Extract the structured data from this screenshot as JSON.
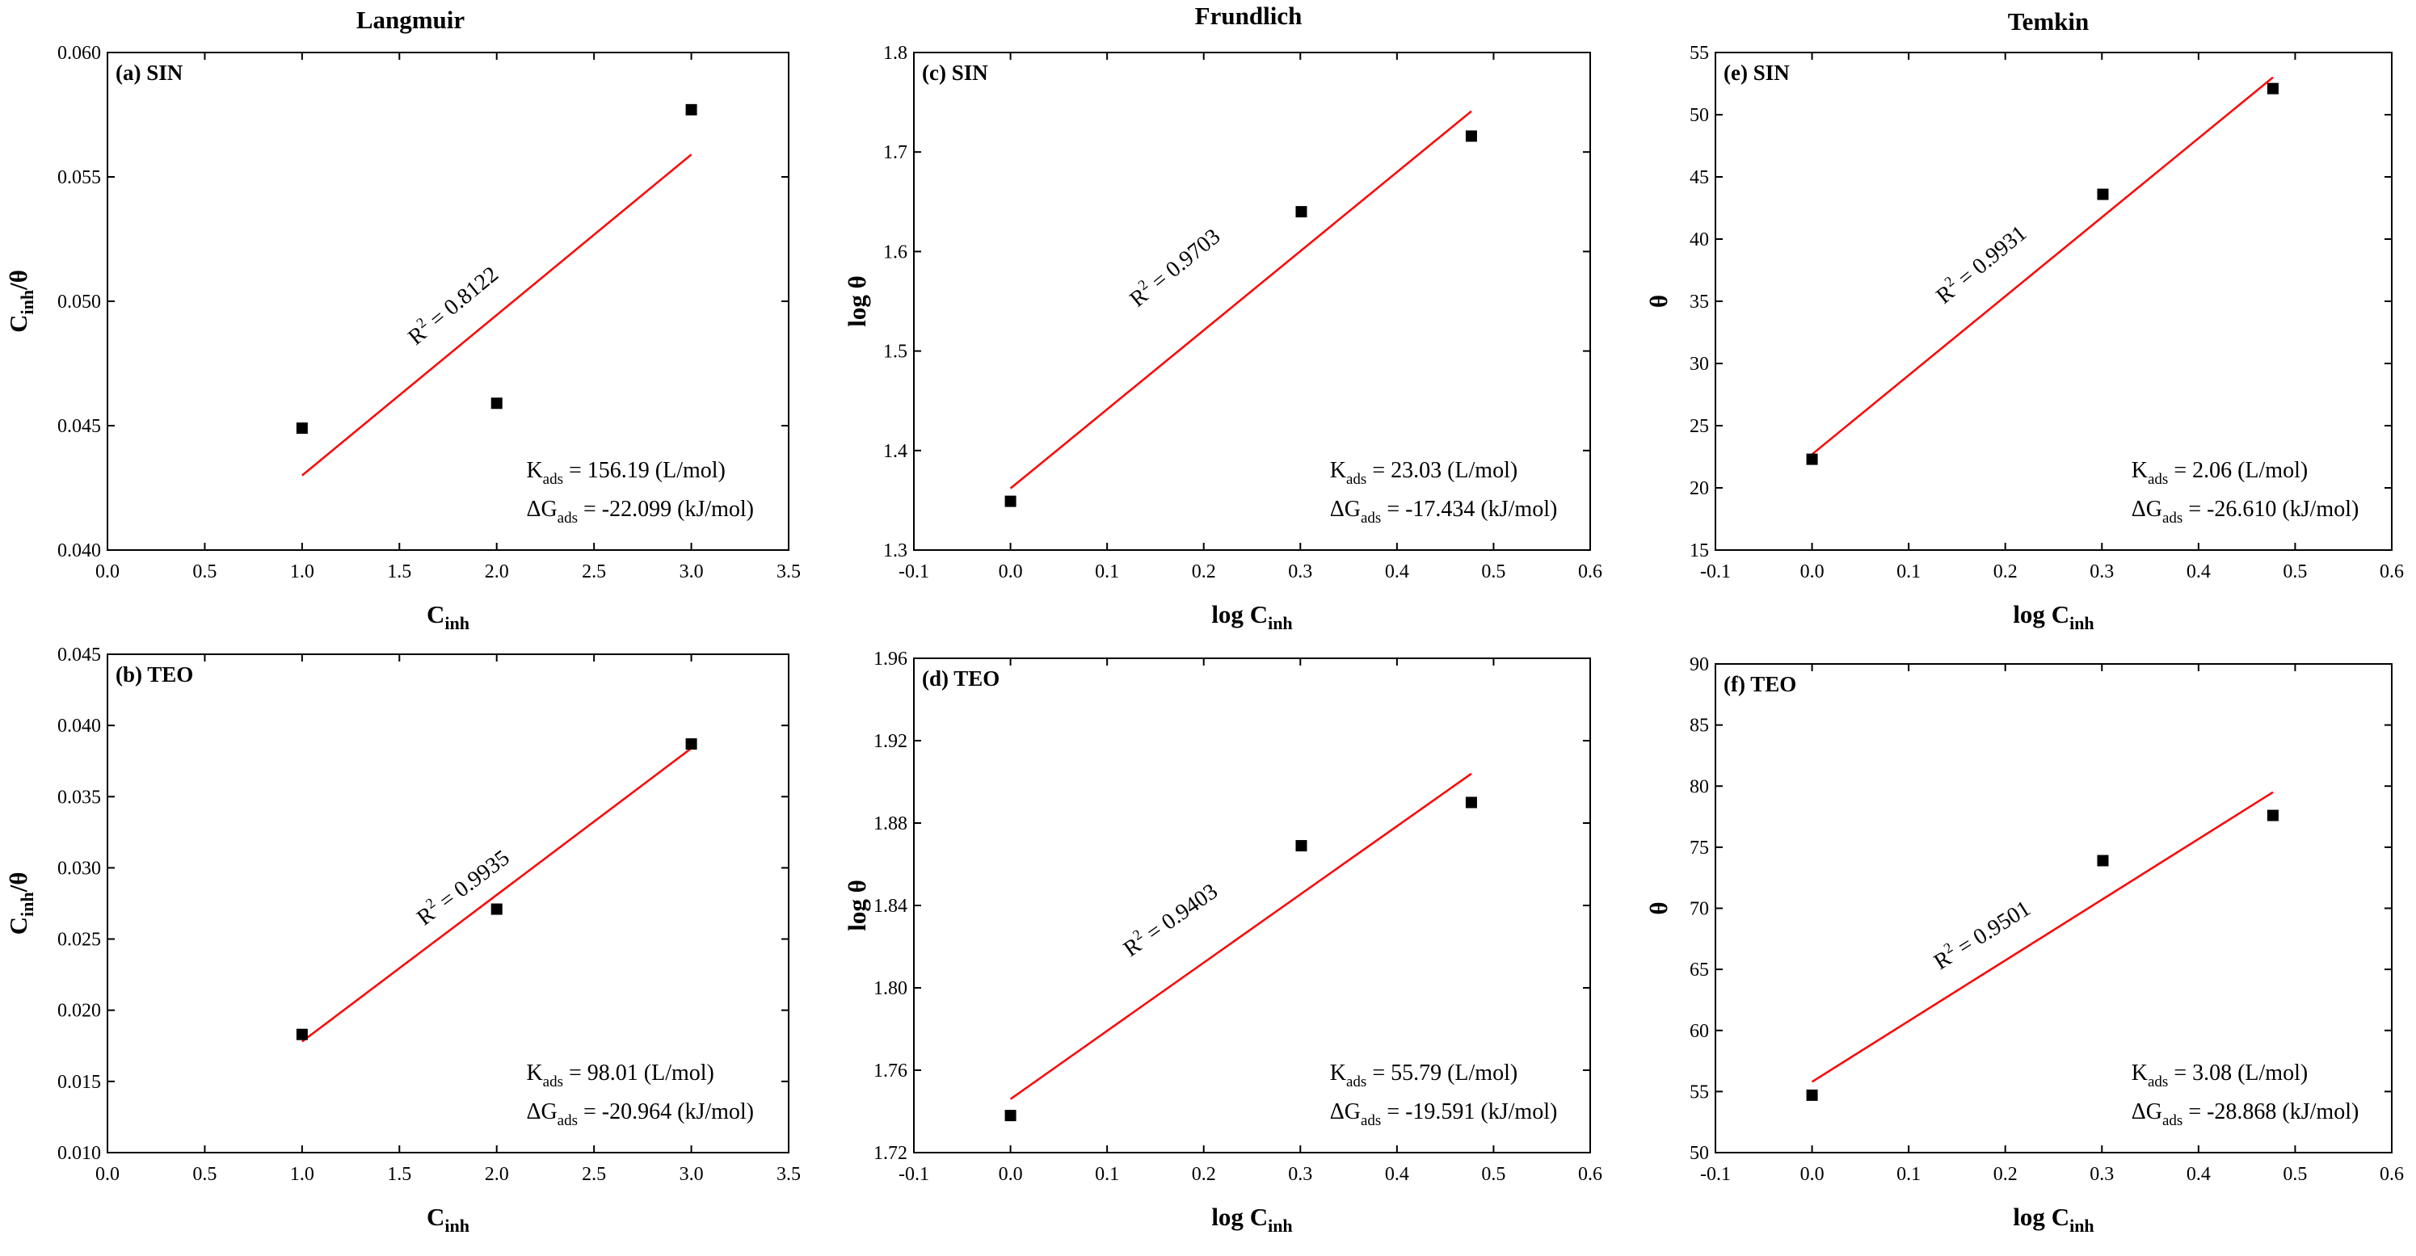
{
  "column_titles": [
    "Langmuir",
    "Frundlich",
    "Temkin"
  ],
  "colors": {
    "fit_line": "#ff0000",
    "marker": "#000000",
    "axis": "#000000"
  },
  "chart_data": [
    {
      "id": "a",
      "type": "scatter",
      "panel_label": "(a) SIN",
      "column": "Langmuir",
      "title": "Langmuir",
      "xlabel": "C_inh",
      "ylabel": "C_inh/θ",
      "xlabel_main": "C",
      "xlabel_sub": "inh",
      "xlabel_prefix": "",
      "ylabel_main": "C",
      "ylabel_sub": "inh",
      "ylabel_suffix": "/θ",
      "xlim": [
        0.0,
        3.5
      ],
      "ylim": [
        0.04,
        0.06
      ],
      "xticks": [
        "0.0",
        "0.5",
        "1.0",
        "1.5",
        "2.0",
        "2.5",
        "3.0",
        "3.5"
      ],
      "yticks": [
        "0.040",
        "0.045",
        "0.050",
        "0.055",
        "0.060"
      ],
      "points": {
        "x": [
          1,
          2,
          3
        ],
        "y": [
          0.0449,
          0.0459,
          0.0577
        ]
      },
      "fit": {
        "x": [
          1,
          3
        ],
        "y": [
          0.043,
          0.0559
        ]
      },
      "r2": "0.8122",
      "r2_x": 1.8,
      "r2_y": 0.0496,
      "k_ads": "= 156.19 (L/mol)",
      "dg_ads": "= -22.099 (kJ/mol)"
    },
    {
      "id": "b",
      "type": "scatter",
      "panel_label": "(b) TEO",
      "column": "Langmuir",
      "title": "",
      "xlabel": "C_inh",
      "ylabel": "C_inh/θ",
      "xlabel_main": "C",
      "xlabel_sub": "inh",
      "xlabel_prefix": "",
      "ylabel_main": "C",
      "ylabel_sub": "inh",
      "ylabel_suffix": "/θ",
      "xlim": [
        0.0,
        3.5
      ],
      "ylim": [
        0.01,
        0.045
      ],
      "xticks": [
        "0.0",
        "0.5",
        "1.0",
        "1.5",
        "2.0",
        "2.5",
        "3.0",
        "3.5"
      ],
      "yticks": [
        "0.010",
        "0.015",
        "0.020",
        "0.025",
        "0.030",
        "0.035",
        "0.040",
        "0.045"
      ],
      "points": {
        "x": [
          1,
          2,
          3
        ],
        "y": [
          0.0183,
          0.0271,
          0.0387
        ]
      },
      "fit": {
        "x": [
          1,
          3
        ],
        "y": [
          0.0178,
          0.0384
        ]
      },
      "r2": "0.9935",
      "r2_x": 1.85,
      "r2_y": 0.0282,
      "k_ads": "= 98.01 (L/mol)",
      "dg_ads": "= -20.964 (kJ/mol)"
    },
    {
      "id": "c",
      "type": "scatter",
      "panel_label": "(c) SIN",
      "column": "Frundlich",
      "title": "Frundlich",
      "xlabel": "log C_inh",
      "ylabel": "log θ",
      "xlabel_main": "C",
      "xlabel_sub": "inh",
      "xlabel_prefix": "log ",
      "ylabel_main": "log θ",
      "ylabel_sub": "",
      "ylabel_suffix": "",
      "xlim": [
        -0.1,
        0.6
      ],
      "ylim": [
        1.3,
        1.8
      ],
      "xticks": [
        "-0.1",
        "0.0",
        "0.1",
        "0.2",
        "0.3",
        "0.4",
        "0.5",
        "0.6"
      ],
      "yticks": [
        "1.3",
        "1.4",
        "1.5",
        "1.6",
        "1.7",
        "1.8"
      ],
      "points": {
        "x": [
          0,
          0.301,
          0.477
        ],
        "y": [
          1.349,
          1.64,
          1.716
        ]
      },
      "fit": {
        "x": [
          0,
          0.477
        ],
        "y": [
          1.362,
          1.741
        ]
      },
      "r2": "0.9703",
      "r2_x": 0.175,
      "r2_y": 1.578,
      "k_ads": "= 23.03 (L/mol)",
      "dg_ads": "= -17.434 (kJ/mol)"
    },
    {
      "id": "d",
      "type": "scatter",
      "panel_label": "(d) TEO",
      "column": "Frundlich",
      "title": "",
      "xlabel": "log C_inh",
      "ylabel": "log θ",
      "xlabel_main": "C",
      "xlabel_sub": "inh",
      "xlabel_prefix": "log ",
      "ylabel_main": "log θ",
      "ylabel_sub": "",
      "ylabel_suffix": "",
      "xlim": [
        -0.1,
        0.6
      ],
      "ylim": [
        1.72,
        1.96
      ],
      "xticks": [
        "-0.1",
        "0.0",
        "0.1",
        "0.2",
        "0.3",
        "0.4",
        "0.5",
        "0.6"
      ],
      "yticks": [
        "1.72",
        "1.76",
        "1.80",
        "1.84",
        "1.88",
        "1.92",
        "1.96"
      ],
      "points": {
        "x": [
          0,
          0.301,
          0.477
        ],
        "y": [
          1.738,
          1.869,
          1.89
        ]
      },
      "fit": {
        "x": [
          0,
          0.477
        ],
        "y": [
          1.746,
          1.904
        ]
      },
      "r2": "0.9403",
      "r2_x": 0.17,
      "r2_y": 1.83,
      "k_ads": "= 55.79 (L/mol)",
      "dg_ads": "= -19.591 (kJ/mol)"
    },
    {
      "id": "e",
      "type": "scatter",
      "panel_label": "(e) SIN",
      "column": "Temkin",
      "title": "Temkin",
      "xlabel": "log C_inh",
      "ylabel": "θ",
      "xlabel_main": "C",
      "xlabel_sub": "inh",
      "xlabel_prefix": "log ",
      "ylabel_main": "θ",
      "ylabel_sub": "",
      "ylabel_suffix": "",
      "xlim": [
        -0.1,
        0.6
      ],
      "ylim": [
        15,
        55
      ],
      "xticks": [
        "-0.1",
        "0.0",
        "0.1",
        "0.2",
        "0.3",
        "0.4",
        "0.5",
        "0.6"
      ],
      "yticks": [
        "15",
        "20",
        "25",
        "30",
        "35",
        "40",
        "45",
        "50",
        "55"
      ],
      "points": {
        "x": [
          0,
          0.301,
          0.477
        ],
        "y": [
          22.3,
          43.6,
          52.1
        ]
      },
      "fit": {
        "x": [
          0,
          0.477
        ],
        "y": [
          22.7,
          53.0
        ]
      },
      "r2": "0.9931",
      "r2_x": 0.18,
      "r2_y": 37.5,
      "k_ads": "= 2.06 (L/mol)",
      "dg_ads": "= -26.610 (kJ/mol)"
    },
    {
      "id": "f",
      "type": "scatter",
      "panel_label": "(f) TEO",
      "column": "Temkin",
      "title": "",
      "xlabel": "log C_inh",
      "ylabel": "θ",
      "xlabel_main": "C",
      "xlabel_sub": "inh",
      "xlabel_prefix": "log ",
      "ylabel_main": "θ",
      "ylabel_sub": "",
      "ylabel_suffix": "",
      "xlim": [
        -0.1,
        0.6
      ],
      "ylim": [
        50,
        90
      ],
      "xticks": [
        "-0.1",
        "0.0",
        "0.1",
        "0.2",
        "0.3",
        "0.4",
        "0.5",
        "0.6"
      ],
      "yticks": [
        "50",
        "55",
        "60",
        "65",
        "70",
        "75",
        "80",
        "85",
        "90"
      ],
      "points": {
        "x": [
          0,
          0.301,
          0.477
        ],
        "y": [
          54.7,
          73.9,
          77.6
        ]
      },
      "fit": {
        "x": [
          0,
          0.477
        ],
        "y": [
          55.8,
          79.5
        ]
      },
      "r2": "0.9501",
      "r2_x": 0.18,
      "r2_y": 67.3,
      "k_ads": "= 3.08 (L/mol)",
      "dg_ads": "= -28.868 (kJ/mol)"
    }
  ],
  "annotation_labels": {
    "k_main": "K",
    "k_sub": "ads",
    "g_main": "ΔG",
    "g_sub": "ads",
    "r2_main": "R",
    "r2_sup": "2",
    "r2_eq": " = "
  }
}
